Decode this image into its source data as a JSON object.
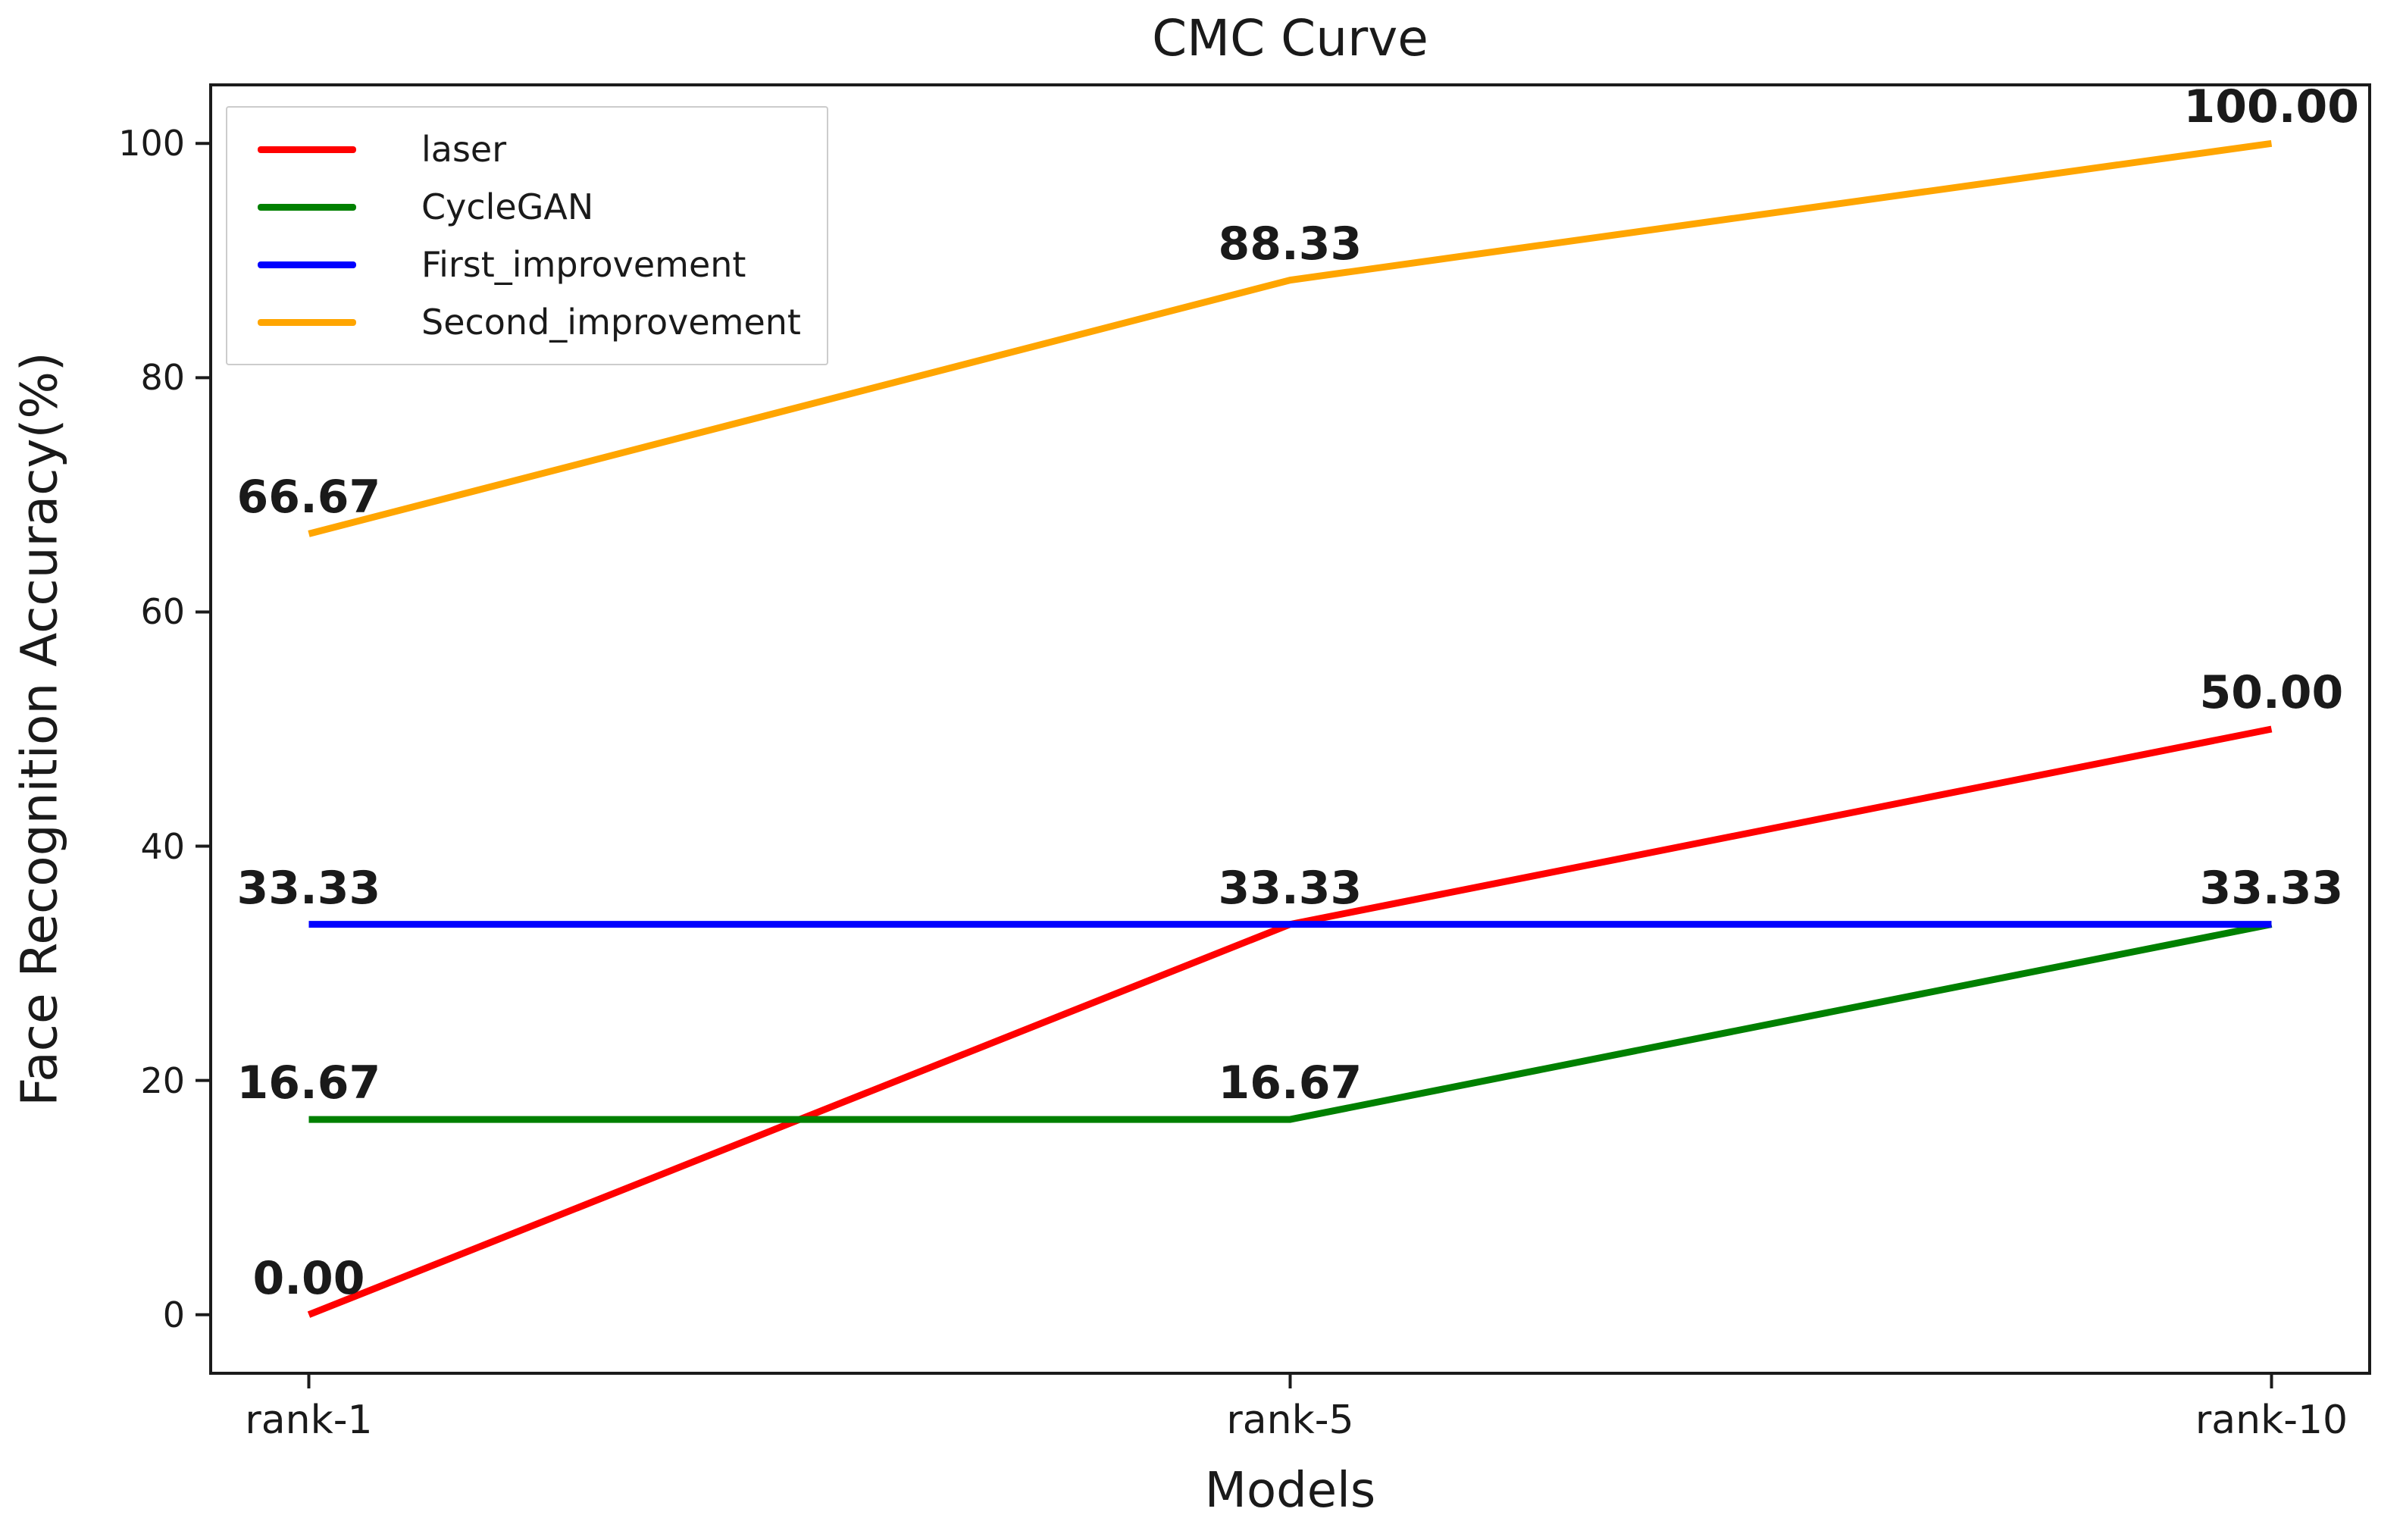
{
  "chart_data": {
    "type": "line",
    "title": "CMC Curve",
    "xlabel": "Models",
    "ylabel": "Face Recognition Accuracy(%)",
    "categories": [
      "rank-1",
      "rank-5",
      "rank-10"
    ],
    "yticks": [
      0,
      20,
      40,
      60,
      80,
      100
    ],
    "ylim": [
      -5,
      105
    ],
    "xlim": [
      -0.1,
      2.1
    ],
    "grid": false,
    "legend_position": "upper left",
    "series": [
      {
        "name": "laser",
        "color": "#ff0000",
        "values": [
          0,
          33.33,
          50
        ]
      },
      {
        "name": "CycleGAN",
        "color": "#008000",
        "values": [
          16.67,
          16.67,
          33.33
        ]
      },
      {
        "name": "First_improvement",
        "color": "#0000ff",
        "values": [
          33.33,
          33.33,
          33.33
        ]
      },
      {
        "name": "Second_improvement",
        "color": "#ffa500",
        "values": [
          66.67,
          88.33,
          100
        ]
      }
    ],
    "annotations": [
      {
        "text": "0.00",
        "x": 0,
        "y": 0
      },
      {
        "text": "33.33",
        "x": 1,
        "y": 33.33
      },
      {
        "text": "50.00",
        "x": 2,
        "y": 50
      },
      {
        "text": "16.67",
        "x": 0,
        "y": 16.67
      },
      {
        "text": "16.67",
        "x": 1,
        "y": 16.67
      },
      {
        "text": "33.33",
        "x": 0,
        "y": 33.33
      },
      {
        "text": "33.33",
        "x": 2,
        "y": 33.33
      },
      {
        "text": "66.67",
        "x": 0,
        "y": 66.67
      },
      {
        "text": "88.33",
        "x": 1,
        "y": 88.33
      },
      {
        "text": "100.00",
        "x": 2,
        "y": 100
      }
    ],
    "colors": {
      "axis": "#1b1b1b",
      "text": "#1a1a1a",
      "legend_border": "#cccccc",
      "background": "#ffffff"
    }
  }
}
